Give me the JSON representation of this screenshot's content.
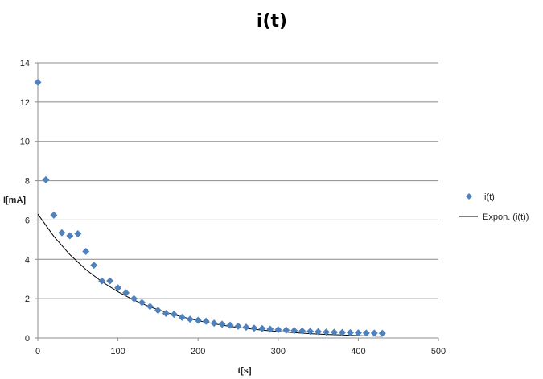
{
  "chart_data": {
    "type": "scatter",
    "title": "i(t)",
    "xlabel": "t[s]",
    "ylabel": "I[mA]",
    "xlim": [
      0,
      500
    ],
    "ylim": [
      0,
      14
    ],
    "xticks": [
      0,
      100,
      200,
      300,
      400,
      500
    ],
    "yticks": [
      0,
      2,
      4,
      6,
      8,
      10,
      12,
      14
    ],
    "grid": "horizontal",
    "legend_position": "right",
    "series": [
      {
        "name": "i(t)",
        "marker": "diamond",
        "color": "#4F81BD",
        "x": [
          0,
          10,
          20,
          30,
          40,
          50,
          60,
          70,
          80,
          90,
          100,
          110,
          120,
          130,
          140,
          150,
          160,
          170,
          180,
          190,
          200,
          210,
          220,
          230,
          240,
          250,
          260,
          270,
          280,
          290,
          300,
          310,
          320,
          330,
          340,
          350,
          360,
          370,
          380,
          390,
          400,
          410,
          420,
          430
        ],
        "y": [
          13,
          8.05,
          6.25,
          5.35,
          5.2,
          5.3,
          4.4,
          3.7,
          2.9,
          2.9,
          2.55,
          2.3,
          2.0,
          1.8,
          1.6,
          1.4,
          1.25,
          1.2,
          1.05,
          0.95,
          0.9,
          0.85,
          0.75,
          0.7,
          0.65,
          0.6,
          0.55,
          0.5,
          0.48,
          0.45,
          0.42,
          0.4,
          0.38,
          0.36,
          0.34,
          0.32,
          0.3,
          0.29,
          0.28,
          0.27,
          0.26,
          0.25,
          0.25,
          0.24
        ]
      },
      {
        "name": "Expon. (i(t))",
        "kind": "trendline",
        "color": "#000000",
        "x": [
          0,
          20,
          40,
          60,
          80,
          100,
          120,
          140,
          160,
          180,
          200,
          220,
          240,
          260,
          280,
          300,
          320,
          340,
          360,
          380,
          400,
          420,
          430
        ],
        "y": [
          6.3,
          5.17,
          4.24,
          3.48,
          2.86,
          2.35,
          1.93,
          1.58,
          1.3,
          1.07,
          0.88,
          0.72,
          0.59,
          0.49,
          0.4,
          0.33,
          0.27,
          0.22,
          0.18,
          0.15,
          0.12,
          0.1,
          0.09
        ]
      }
    ]
  }
}
